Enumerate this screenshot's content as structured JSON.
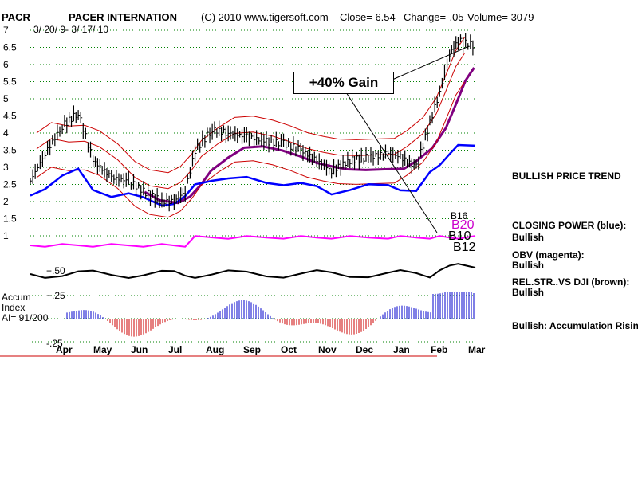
{
  "header": {
    "symbol": "PACR",
    "name": "PACER INTERNATION",
    "copyright": "(C) 2010 www.tigersoft.com",
    "close": "Close=  6.54",
    "change": "Change=-.05",
    "volume": "Volume= 3079",
    "date_range": "3/ 20/ 9-  3/ 17/ 10"
  },
  "annotation": {
    "gain_label": "+40% Gain"
  },
  "signals": [
    "B16",
    "B20",
    "B10",
    "B12"
  ],
  "accum": {
    "title_line1": "Accum",
    "title_line2": "Index",
    "ai_value": "AI= 91/200",
    "upper_label": "+.25",
    "lower_label": "-.25",
    "mid_label": "+.50"
  },
  "sidebar": {
    "price_trend": "BULLISH PRICE TREND",
    "closing_power_title": "CLOSING POWER (blue):",
    "closing_power_value": "Bullish",
    "obv_title": "OBV (magenta):",
    "obv_value": "Bullish",
    "relstr_title": "REL.STR..VS DJI (brown):",
    "relstr_value": "Bullish",
    "accum_status": "Bullish: Accumulation Rising"
  },
  "colors": {
    "price_bars": "#000000",
    "bands": "#cc0000",
    "ma": "#800080",
    "closing_power": "#0000ff",
    "obv": "#ff00ff",
    "rel_str": "#000000",
    "accum_pos": "#0000cc",
    "accum_neg": "#cc0000",
    "grid": "#008000"
  },
  "chart_data": {
    "type": "line",
    "title": "PACER INTERNATION",
    "y_ticks": [
      "7",
      "6.5",
      "6",
      "5.5",
      "5",
      "4.5",
      "4",
      "3.5",
      "3",
      "2.5",
      "2",
      "1.5",
      "1"
    ],
    "ylim": [
      1,
      7
    ],
    "x_tick_labels": [
      "Apr",
      "May",
      "Jun",
      "Jul",
      "Aug",
      "Sep",
      "Oct",
      "Nov",
      "Dec",
      "Jan",
      "Feb",
      "Mar"
    ],
    "grid": true,
    "series": [
      {
        "name": "PACR",
        "x": [
          "2009-03-20",
          "2009-04-01",
          "2009-04-15",
          "2009-04-28",
          "2009-05-10",
          "2009-05-25",
          "2009-06-08",
          "2009-06-20",
          "2009-07-05",
          "2009-07-15",
          "2009-07-24",
          "2009-08-01",
          "2009-08-15",
          "2009-08-28",
          "2009-09-12",
          "2009-09-28",
          "2009-10-12",
          "2009-10-26",
          "2009-11-08",
          "2009-11-20",
          "2009-12-05",
          "2009-12-20",
          "2010-01-05",
          "2010-01-15",
          "2010-01-28",
          "2010-02-08",
          "2010-02-16",
          "2010-02-24",
          "2010-03-03",
          "2010-03-17"
        ],
        "values": [
          2.6,
          3.4,
          4.2,
          4.6,
          3.2,
          2.7,
          2.6,
          2.3,
          2.0,
          2.0,
          2.3,
          3.5,
          4.1,
          4.0,
          3.9,
          3.75,
          3.7,
          3.5,
          3.2,
          2.9,
          3.2,
          3.3,
          3.4,
          3.3,
          3.0,
          4.3,
          5.2,
          6.3,
          6.7,
          6.54
        ]
      }
    ]
  }
}
